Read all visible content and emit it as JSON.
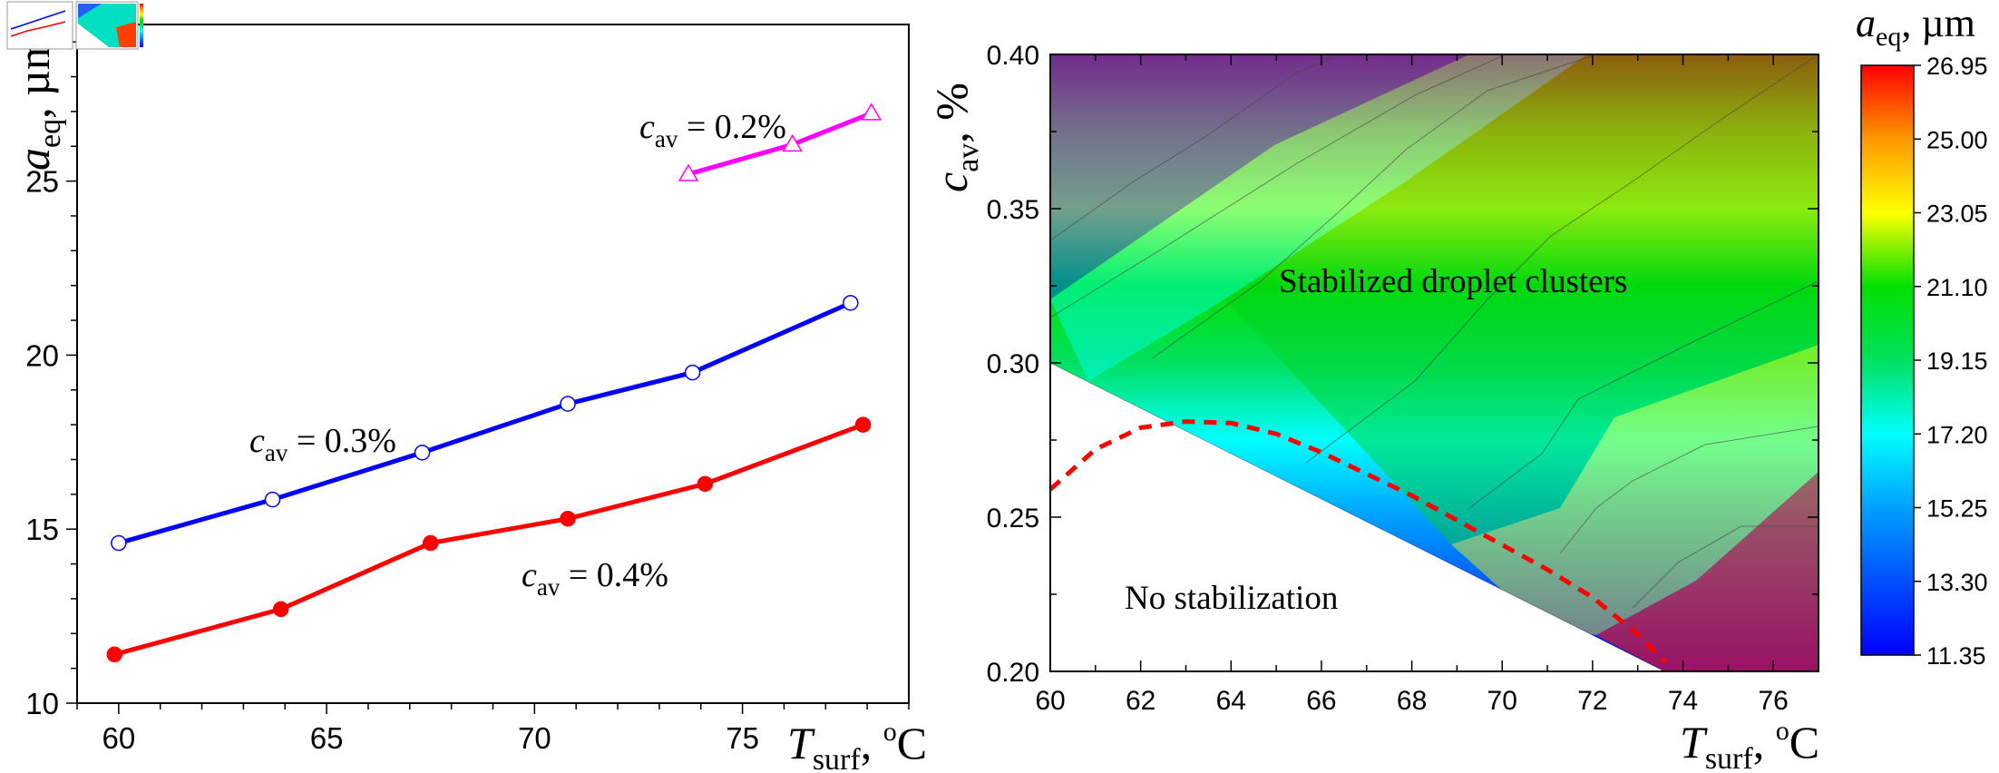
{
  "chart_data": [
    {
      "type": "line",
      "xlabel": {
        "main": "T",
        "sub": "surf",
        "tail": ", ",
        "sup": "o",
        "unit": "C"
      },
      "ylabel": {
        "main": "a",
        "sub": "eq",
        "tail": ", µm"
      },
      "xlim": [
        59,
        79
      ],
      "ylim": [
        10,
        29.5
      ],
      "x_ticks": [
        60,
        65,
        70,
        75
      ],
      "y_ticks": [
        10,
        15,
        20,
        25
      ],
      "series": [
        {
          "color": "#ff0000",
          "marker": "filled-circle",
          "x": [
            59.9,
            63.9,
            67.5,
            70.8,
            74.1,
            77.9
          ],
          "y": [
            11.4,
            12.7,
            14.6,
            15.3,
            16.3,
            18.0
          ],
          "label": {
            "main": "c",
            "sub": "av",
            "tail": " = 0.4%"
          }
        },
        {
          "color": "#0000ff",
          "marker": "open-circle",
          "x": [
            60.0,
            63.7,
            67.3,
            70.8,
            73.8,
            77.6
          ],
          "y": [
            14.6,
            15.85,
            17.2,
            18.6,
            19.5,
            21.5
          ],
          "label": {
            "main": "c",
            "sub": "av",
            "tail": " = 0.3%"
          }
        },
        {
          "color": "#ff00ff",
          "marker": "open-triangle",
          "x": [
            73.7,
            76.2,
            78.1
          ],
          "y": [
            25.2,
            26.05,
            26.95
          ],
          "label": {
            "main": "c",
            "sub": "av",
            "tail": " = 0.2%"
          }
        }
      ]
    },
    {
      "type": "heatmap",
      "xlabel": {
        "main": "T",
        "sub": "surf",
        "tail": ", ",
        "sup": "o",
        "unit": "C"
      },
      "ylabel": {
        "main": "c",
        "sub": "av",
        "tail": ", %"
      },
      "xlim": [
        60,
        77
      ],
      "ylim": [
        0.2,
        0.4
      ],
      "x_ticks": [
        "60",
        "62",
        "64",
        "66",
        "68",
        "70",
        "72",
        "74",
        "76"
      ],
      "y_ticks": [
        "0.20",
        "0.25",
        "0.30",
        "0.35",
        "0.40"
      ],
      "colorbar": {
        "title": {
          "main": "a",
          "sub": "eq",
          "tail": ", µm"
        },
        "range": [
          11.35,
          26.95
        ],
        "ticks": [
          "26.95",
          "25.00",
          "23.05",
          "21.10",
          "19.15",
          "17.20",
          "15.25",
          "13.30",
          "11.35"
        ]
      },
      "boundary_line": {
        "from": [
          60,
          0.3
        ],
        "to": [
          73.6,
          0.2
        ]
      },
      "dashed_curve": {
        "color": "#ff0000",
        "points": [
          [
            60,
            0.259
          ],
          [
            61,
            0.272
          ],
          [
            62,
            0.279
          ],
          [
            63,
            0.281
          ],
          [
            64,
            0.2805
          ],
          [
            65,
            0.277
          ],
          [
            66,
            0.271
          ],
          [
            67,
            0.264
          ],
          [
            68,
            0.257
          ],
          [
            69,
            0.249
          ],
          [
            70,
            0.241
          ],
          [
            71,
            0.233
          ],
          [
            72,
            0.224
          ],
          [
            73,
            0.212
          ],
          [
            73.6,
            0.203
          ]
        ]
      },
      "annotations": [
        "Stabilized droplet clusters",
        "No stabilization"
      ]
    }
  ]
}
